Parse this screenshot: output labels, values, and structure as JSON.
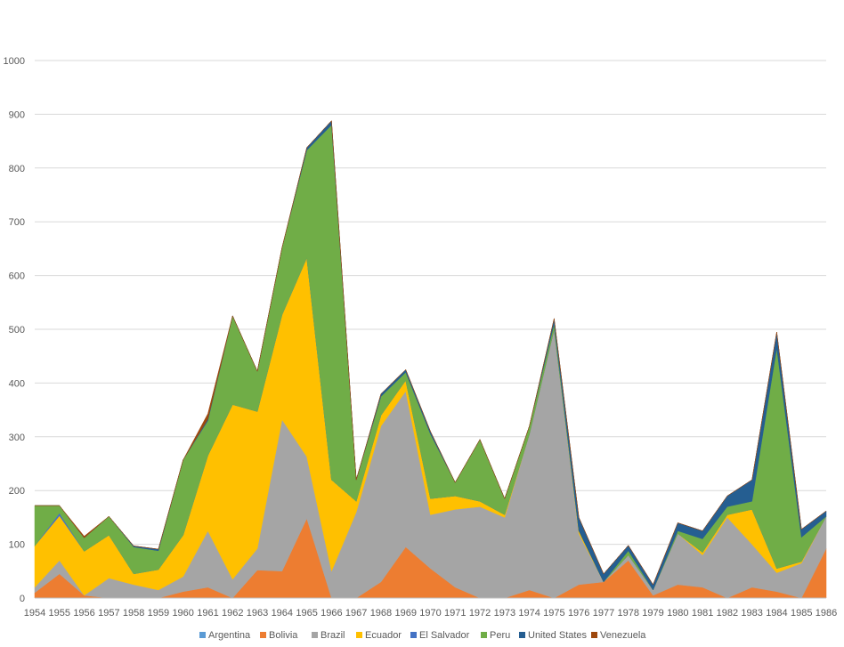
{
  "chart_data": {
    "type": "area",
    "stacked": true,
    "title": "",
    "xlabel": "",
    "ylabel": "",
    "ylim": [
      0,
      1000
    ],
    "y_ticks": [
      "0",
      "100",
      "200",
      "300",
      "400",
      "500",
      "600",
      "700",
      "800",
      "900",
      "1000"
    ],
    "grid": true,
    "legend_position": "bottom",
    "categories": [
      "1954",
      "1955",
      "1956",
      "1957",
      "1958",
      "1959",
      "1960",
      "1961",
      "1962",
      "1963",
      "1964",
      "1965",
      "1966",
      "1967",
      "1968",
      "1969",
      "1970",
      "1971",
      "1972",
      "1973",
      "1974",
      "1975",
      "1976",
      "1977",
      "1978",
      "1979",
      "1980",
      "1981",
      "1982",
      "1983",
      "1984",
      "1985",
      "1986"
    ],
    "series": [
      {
        "name": "Argentina",
        "color": "#5B9BD5",
        "values": [
          0,
          0,
          0,
          0,
          0,
          0,
          0,
          0,
          0,
          0,
          0,
          0,
          0,
          0,
          0,
          0,
          0,
          0,
          0,
          0,
          0,
          0,
          0,
          0,
          0,
          0,
          0,
          0,
          0,
          0,
          0,
          0,
          0
        ]
      },
      {
        "name": "Bolivia",
        "color": "#ED7D31",
        "values": [
          10,
          45,
          5,
          0,
          0,
          0,
          12,
          20,
          0,
          52,
          50,
          148,
          0,
          0,
          30,
          95,
          55,
          20,
          0,
          0,
          15,
          0,
          25,
          30,
          70,
          5,
          25,
          20,
          0,
          20,
          12,
          0,
          92
        ]
      },
      {
        "name": "Brazil",
        "color": "#A5A5A5",
        "values": [
          10,
          25,
          0,
          37,
          25,
          15,
          28,
          105,
          35,
          40,
          282,
          115,
          50,
          160,
          290,
          290,
          100,
          145,
          170,
          150,
          290,
          500,
          95,
          0,
          10,
          10,
          95,
          60,
          150,
          80,
          35,
          65,
          60
        ]
      },
      {
        "name": "Ecuador",
        "color": "#FFC000",
        "values": [
          77,
          83,
          82,
          80,
          20,
          38,
          77,
          140,
          325,
          255,
          195,
          370,
          170,
          20,
          20,
          20,
          30,
          25,
          10,
          5,
          0,
          0,
          5,
          0,
          0,
          0,
          0,
          5,
          5,
          65,
          8,
          3,
          0
        ]
      },
      {
        "name": "El Salvador",
        "color": "#4472C4",
        "values": [
          0,
          5,
          0,
          0,
          0,
          0,
          0,
          0,
          0,
          0,
          0,
          0,
          0,
          0,
          0,
          0,
          0,
          0,
          0,
          0,
          0,
          0,
          0,
          0,
          0,
          0,
          0,
          0,
          0,
          0,
          0,
          0,
          0
        ]
      },
      {
        "name": "Peru",
        "color": "#70AD47",
        "values": [
          75,
          14,
          25,
          35,
          50,
          35,
          140,
          65,
          165,
          75,
          125,
          200,
          660,
          40,
          35,
          15,
          120,
          25,
          115,
          30,
          15,
          10,
          0,
          0,
          8,
          0,
          5,
          25,
          15,
          15,
          410,
          45,
          0
        ]
      },
      {
        "name": "United States",
        "color": "#255E91",
        "values": [
          0,
          0,
          0,
          0,
          2,
          3,
          0,
          3,
          0,
          0,
          0,
          5,
          8,
          0,
          5,
          5,
          5,
          0,
          0,
          0,
          0,
          10,
          25,
          15,
          10,
          10,
          15,
          15,
          20,
          40,
          30,
          15,
          10
        ]
      },
      {
        "name": "Venezuela",
        "color": "#9E480E",
        "values": [
          0,
          0,
          3,
          0,
          0,
          0,
          0,
          10,
          0,
          0,
          0,
          0,
          0,
          0,
          0,
          0,
          0,
          0,
          0,
          0,
          0,
          0,
          0,
          0,
          0,
          0,
          0,
          0,
          0,
          0,
          0,
          0,
          0
        ]
      }
    ]
  }
}
